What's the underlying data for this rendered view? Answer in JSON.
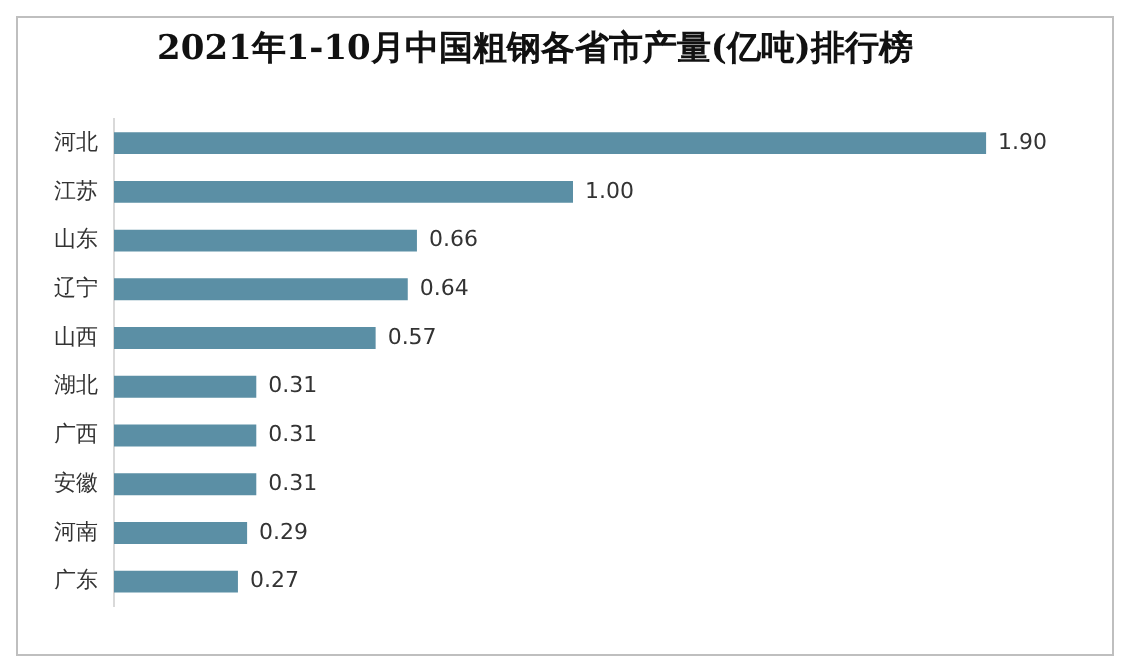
{
  "chart_data": {
    "type": "bar",
    "orientation": "horizontal",
    "title": "2021年1-10月中国粗钢各省市产量(亿吨)排行榜",
    "categories": [
      "河北",
      "江苏",
      "山东",
      "辽宁",
      "山西",
      "湖北",
      "广西",
      "安徽",
      "河南",
      "广东"
    ],
    "values": [
      1.9,
      1.0,
      0.66,
      0.64,
      0.57,
      0.31,
      0.31,
      0.31,
      0.29,
      0.27
    ],
    "value_labels": [
      "1.90",
      "1.00",
      "0.66",
      "0.64",
      "0.57",
      "0.31",
      "0.31",
      "0.31",
      "0.29",
      "0.27"
    ],
    "color": "#5b8fa5",
    "grid": false,
    "legend": false,
    "tick_labels": "y"
  }
}
